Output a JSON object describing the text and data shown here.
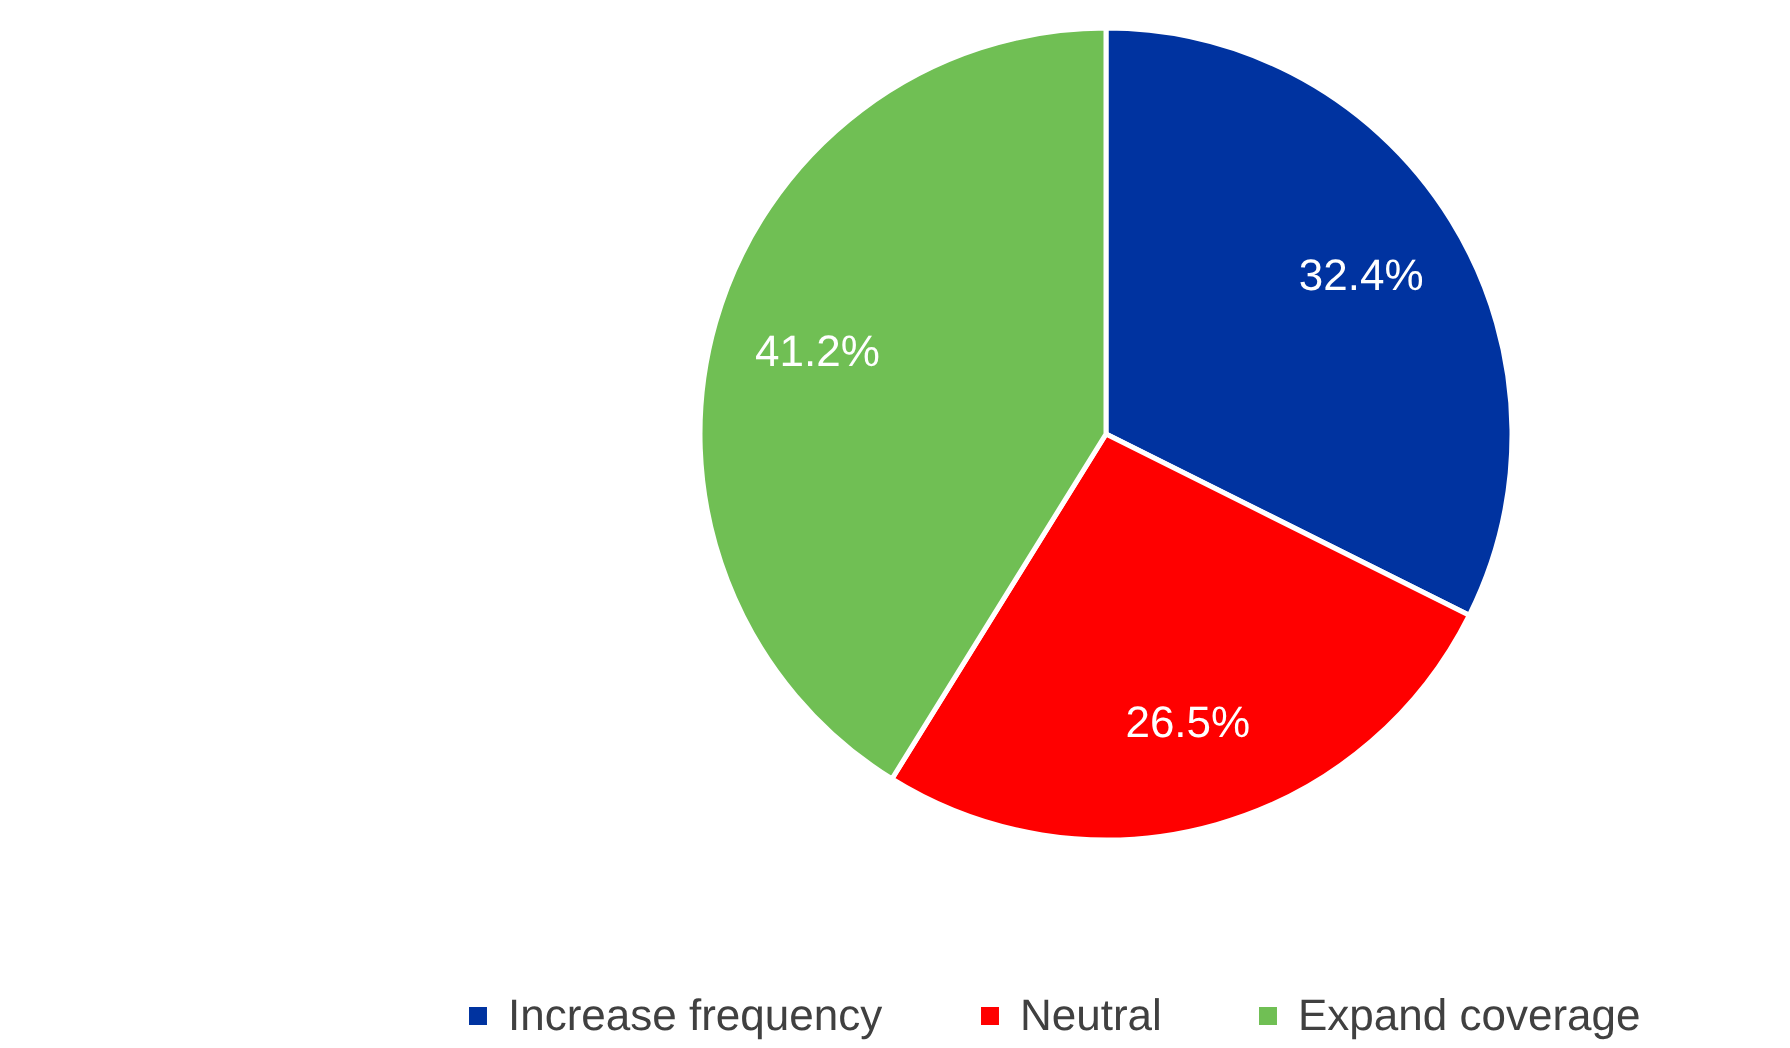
{
  "chart_data": {
    "type": "pie",
    "categories": [
      "Increase frequency",
      "Neutral",
      "Expand coverage"
    ],
    "values": [
      32.4,
      26.5,
      41.2
    ],
    "colors": [
      "#0033a0",
      "#ff0000",
      "#70bf54"
    ],
    "value_labels": [
      "32.4%",
      "26.5%",
      "41.2%"
    ],
    "legend": "bottom"
  }
}
